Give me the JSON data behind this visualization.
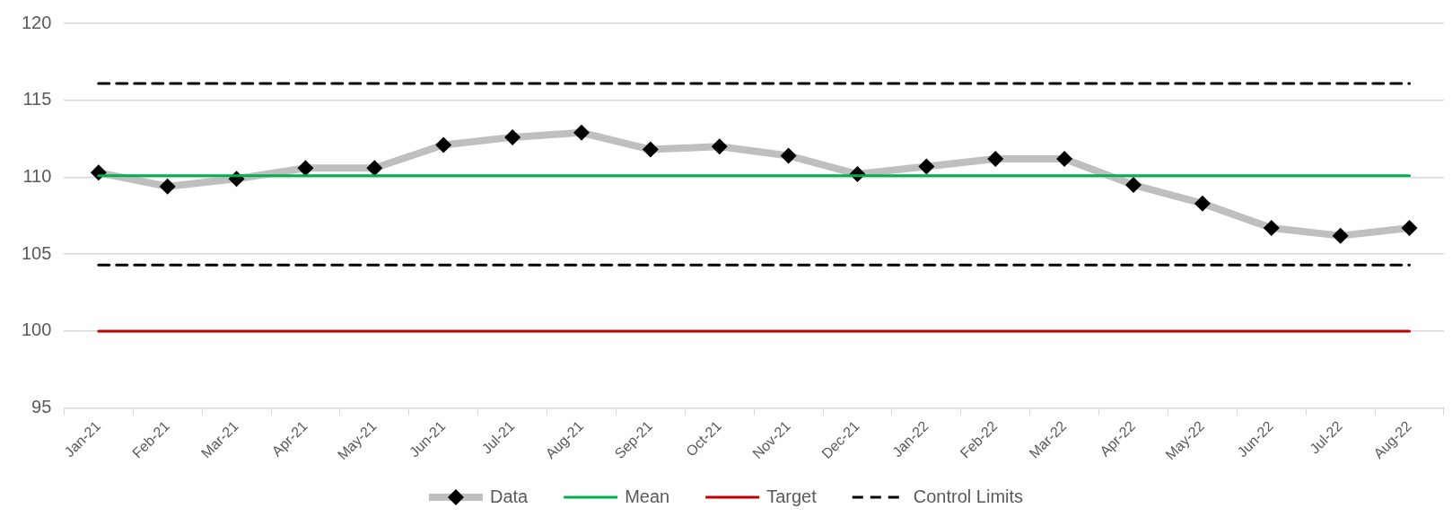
{
  "chart_data": {
    "type": "line",
    "categories": [
      "Jan-21",
      "Feb-21",
      "Mar-21",
      "Apr-21",
      "May-21",
      "Jun-21",
      "Jul-21",
      "Aug-21",
      "Sep-21",
      "Oct-21",
      "Nov-21",
      "Dec-21",
      "Jan-22",
      "Feb-22",
      "Mar-22",
      "Apr-22",
      "May-22",
      "Jun-22",
      "Jul-22",
      "Aug-22"
    ],
    "series": [
      {
        "name": "Data",
        "color": "#bfbfbf",
        "marker": "diamond",
        "colors": [
          "#000000",
          "#000000",
          "#000000",
          "#000000",
          "#000000",
          "#000000",
          "#000000",
          "#000000",
          "#000000",
          "#000000",
          "#000000",
          "#000000",
          "#000000",
          "#000000",
          "#000000",
          "#000000",
          "#000000",
          "#000000",
          "#000000",
          "#000000"
        ],
        "values": [
          110.3,
          109.4,
          109.9,
          110.6,
          110.6,
          112.1,
          112.6,
          112.9,
          111.8,
          112.0,
          111.4,
          110.2,
          110.7,
          111.2,
          111.2,
          109.5,
          108.3,
          106.7,
          106.2,
          106.7
        ]
      },
      {
        "name": "Mean",
        "color": "#00b050",
        "marker": "none",
        "values": [
          110.1,
          110.1,
          110.1,
          110.1,
          110.1,
          110.1,
          110.1,
          110.1,
          110.1,
          110.1,
          110.1,
          110.1,
          110.1,
          110.1,
          110.1,
          110.1,
          110.1,
          110.1,
          110.1,
          110.1
        ]
      },
      {
        "name": "Target",
        "color": "#c00000",
        "marker": "none",
        "values": [
          100,
          100,
          100,
          100,
          100,
          100,
          100,
          100,
          100,
          100,
          100,
          100,
          100,
          100,
          100,
          100,
          100,
          100,
          100,
          100
        ]
      },
      {
        "name": "Control Limits",
        "color": "#000000",
        "marker": "none",
        "line_style": "dashed",
        "values": [
          116.1,
          116.1,
          116.1,
          116.1,
          116.1,
          116.1,
          116.1,
          116.1,
          116.1,
          116.1,
          116.1,
          116.1,
          116.1,
          116.1,
          116.1,
          116.1,
          116.1,
          116.1,
          116.1,
          116.1
        ]
      },
      {
        "color": "#000000",
        "marker": "none",
        "line_style": "dashed",
        "values": [
          104.3,
          104.3,
          104.3,
          104.3,
          104.3,
          104.3,
          104.3,
          104.3,
          104.3,
          104.3,
          104.3,
          104.3,
          104.3,
          104.3,
          104.3,
          104.3,
          104.3,
          104.3,
          104.3,
          104.3
        ]
      }
    ],
    "ylim": [
      95,
      120
    ],
    "yticks": [
      95,
      100,
      105,
      110,
      115,
      120
    ],
    "grid": "y",
    "legend": "bottom"
  }
}
